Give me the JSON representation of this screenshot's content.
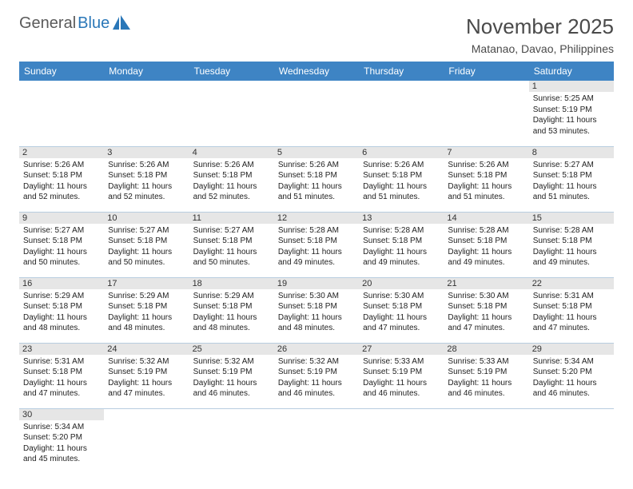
{
  "logo": {
    "text1": "General",
    "text2": "Blue"
  },
  "title": "November 2025",
  "location": "Matanao, Davao, Philippines",
  "colors": {
    "header_bg": "#3e84c4",
    "header_text": "#ffffff",
    "daynum_bg": "#e6e6e6",
    "cell_border": "#b8cde0",
    "logo_gray": "#5a5a5a",
    "logo_blue": "#2a77b8"
  },
  "day_labels": [
    "Sunday",
    "Monday",
    "Tuesday",
    "Wednesday",
    "Thursday",
    "Friday",
    "Saturday"
  ],
  "weeks": [
    [
      null,
      null,
      null,
      null,
      null,
      null,
      {
        "n": "1",
        "sr": "Sunrise: 5:25 AM",
        "ss": "Sunset: 5:19 PM",
        "dl1": "Daylight: 11 hours",
        "dl2": "and 53 minutes."
      }
    ],
    [
      {
        "n": "2",
        "sr": "Sunrise: 5:26 AM",
        "ss": "Sunset: 5:18 PM",
        "dl1": "Daylight: 11 hours",
        "dl2": "and 52 minutes."
      },
      {
        "n": "3",
        "sr": "Sunrise: 5:26 AM",
        "ss": "Sunset: 5:18 PM",
        "dl1": "Daylight: 11 hours",
        "dl2": "and 52 minutes."
      },
      {
        "n": "4",
        "sr": "Sunrise: 5:26 AM",
        "ss": "Sunset: 5:18 PM",
        "dl1": "Daylight: 11 hours",
        "dl2": "and 52 minutes."
      },
      {
        "n": "5",
        "sr": "Sunrise: 5:26 AM",
        "ss": "Sunset: 5:18 PM",
        "dl1": "Daylight: 11 hours",
        "dl2": "and 51 minutes."
      },
      {
        "n": "6",
        "sr": "Sunrise: 5:26 AM",
        "ss": "Sunset: 5:18 PM",
        "dl1": "Daylight: 11 hours",
        "dl2": "and 51 minutes."
      },
      {
        "n": "7",
        "sr": "Sunrise: 5:26 AM",
        "ss": "Sunset: 5:18 PM",
        "dl1": "Daylight: 11 hours",
        "dl2": "and 51 minutes."
      },
      {
        "n": "8",
        "sr": "Sunrise: 5:27 AM",
        "ss": "Sunset: 5:18 PM",
        "dl1": "Daylight: 11 hours",
        "dl2": "and 51 minutes."
      }
    ],
    [
      {
        "n": "9",
        "sr": "Sunrise: 5:27 AM",
        "ss": "Sunset: 5:18 PM",
        "dl1": "Daylight: 11 hours",
        "dl2": "and 50 minutes."
      },
      {
        "n": "10",
        "sr": "Sunrise: 5:27 AM",
        "ss": "Sunset: 5:18 PM",
        "dl1": "Daylight: 11 hours",
        "dl2": "and 50 minutes."
      },
      {
        "n": "11",
        "sr": "Sunrise: 5:27 AM",
        "ss": "Sunset: 5:18 PM",
        "dl1": "Daylight: 11 hours",
        "dl2": "and 50 minutes."
      },
      {
        "n": "12",
        "sr": "Sunrise: 5:28 AM",
        "ss": "Sunset: 5:18 PM",
        "dl1": "Daylight: 11 hours",
        "dl2": "and 49 minutes."
      },
      {
        "n": "13",
        "sr": "Sunrise: 5:28 AM",
        "ss": "Sunset: 5:18 PM",
        "dl1": "Daylight: 11 hours",
        "dl2": "and 49 minutes."
      },
      {
        "n": "14",
        "sr": "Sunrise: 5:28 AM",
        "ss": "Sunset: 5:18 PM",
        "dl1": "Daylight: 11 hours",
        "dl2": "and 49 minutes."
      },
      {
        "n": "15",
        "sr": "Sunrise: 5:28 AM",
        "ss": "Sunset: 5:18 PM",
        "dl1": "Daylight: 11 hours",
        "dl2": "and 49 minutes."
      }
    ],
    [
      {
        "n": "16",
        "sr": "Sunrise: 5:29 AM",
        "ss": "Sunset: 5:18 PM",
        "dl1": "Daylight: 11 hours",
        "dl2": "and 48 minutes."
      },
      {
        "n": "17",
        "sr": "Sunrise: 5:29 AM",
        "ss": "Sunset: 5:18 PM",
        "dl1": "Daylight: 11 hours",
        "dl2": "and 48 minutes."
      },
      {
        "n": "18",
        "sr": "Sunrise: 5:29 AM",
        "ss": "Sunset: 5:18 PM",
        "dl1": "Daylight: 11 hours",
        "dl2": "and 48 minutes."
      },
      {
        "n": "19",
        "sr": "Sunrise: 5:30 AM",
        "ss": "Sunset: 5:18 PM",
        "dl1": "Daylight: 11 hours",
        "dl2": "and 48 minutes."
      },
      {
        "n": "20",
        "sr": "Sunrise: 5:30 AM",
        "ss": "Sunset: 5:18 PM",
        "dl1": "Daylight: 11 hours",
        "dl2": "and 47 minutes."
      },
      {
        "n": "21",
        "sr": "Sunrise: 5:30 AM",
        "ss": "Sunset: 5:18 PM",
        "dl1": "Daylight: 11 hours",
        "dl2": "and 47 minutes."
      },
      {
        "n": "22",
        "sr": "Sunrise: 5:31 AM",
        "ss": "Sunset: 5:18 PM",
        "dl1": "Daylight: 11 hours",
        "dl2": "and 47 minutes."
      }
    ],
    [
      {
        "n": "23",
        "sr": "Sunrise: 5:31 AM",
        "ss": "Sunset: 5:18 PM",
        "dl1": "Daylight: 11 hours",
        "dl2": "and 47 minutes."
      },
      {
        "n": "24",
        "sr": "Sunrise: 5:32 AM",
        "ss": "Sunset: 5:19 PM",
        "dl1": "Daylight: 11 hours",
        "dl2": "and 47 minutes."
      },
      {
        "n": "25",
        "sr": "Sunrise: 5:32 AM",
        "ss": "Sunset: 5:19 PM",
        "dl1": "Daylight: 11 hours",
        "dl2": "and 46 minutes."
      },
      {
        "n": "26",
        "sr": "Sunrise: 5:32 AM",
        "ss": "Sunset: 5:19 PM",
        "dl1": "Daylight: 11 hours",
        "dl2": "and 46 minutes."
      },
      {
        "n": "27",
        "sr": "Sunrise: 5:33 AM",
        "ss": "Sunset: 5:19 PM",
        "dl1": "Daylight: 11 hours",
        "dl2": "and 46 minutes."
      },
      {
        "n": "28",
        "sr": "Sunrise: 5:33 AM",
        "ss": "Sunset: 5:19 PM",
        "dl1": "Daylight: 11 hours",
        "dl2": "and 46 minutes."
      },
      {
        "n": "29",
        "sr": "Sunrise: 5:34 AM",
        "ss": "Sunset: 5:20 PM",
        "dl1": "Daylight: 11 hours",
        "dl2": "and 46 minutes."
      }
    ],
    [
      {
        "n": "30",
        "sr": "Sunrise: 5:34 AM",
        "ss": "Sunset: 5:20 PM",
        "dl1": "Daylight: 11 hours",
        "dl2": "and 45 minutes."
      },
      null,
      null,
      null,
      null,
      null,
      null
    ]
  ]
}
